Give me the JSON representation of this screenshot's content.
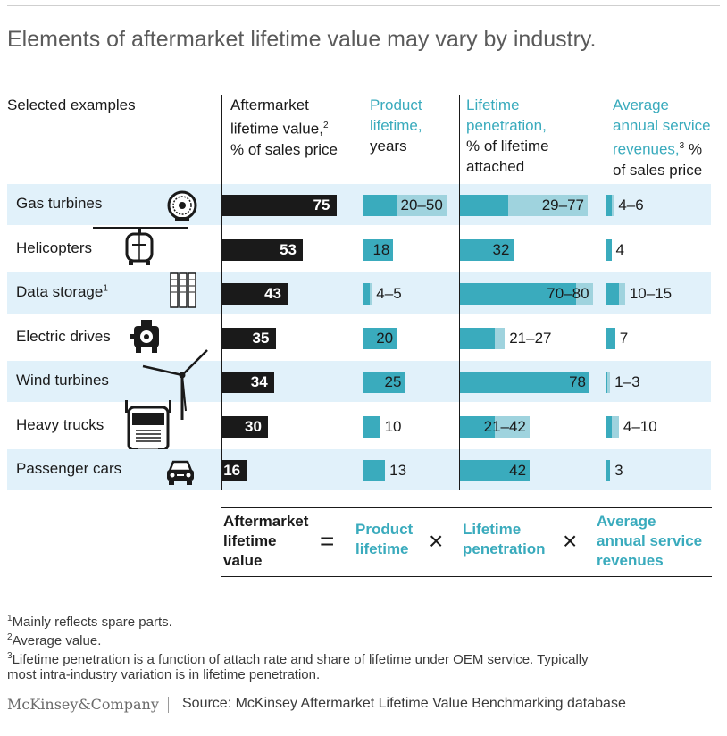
{
  "title": "Elements of aftermarket lifetime value may vary by industry.",
  "headers": {
    "examples": "Selected examples",
    "altv": "Aftermarket\nlifetime value,",
    "altv_sup": "2",
    "altv_unit": "% of sales price",
    "life_teal": "Product\nlifetime,",
    "life_unit": "years",
    "pen_teal": "Lifetime\npenetration,",
    "pen_unit": "% of lifetime\nattached",
    "svc_teal": "Average\nannual service\nrevenues,",
    "svc_sup": "3",
    "svc_pct": " %",
    "svc_unit": "of sales price"
  },
  "colors": {
    "dark": "#1a1a1a",
    "teal": "#3aabbd",
    "light_teal": "#9fd3de",
    "row_band": "#e1f1fa"
  },
  "chart_data": {
    "type": "bar",
    "categories": [
      "Gas turbines",
      "Helicopters",
      "Data storage",
      "Electric drives",
      "Wind turbines",
      "Heavy trucks",
      "Passenger cars"
    ],
    "category_superscripts": [
      "",
      "",
      "1",
      "",
      "",
      "",
      ""
    ],
    "icons": [
      "gas-turbine-icon",
      "helicopter-icon",
      "data-storage-icon",
      "electric-drive-icon",
      "wind-turbine-icon",
      "heavy-truck-icon",
      "passenger-car-icon"
    ],
    "series": [
      {
        "name": "Aftermarket lifetime value",
        "unit": "% of sales price",
        "values": [
          75,
          53,
          43,
          35,
          34,
          30,
          16
        ],
        "labels": [
          "75",
          "53",
          "43",
          "35",
          "34",
          "30",
          "16"
        ]
      },
      {
        "name": "Product lifetime",
        "unit": "years",
        "low": [
          20,
          18,
          4,
          20,
          25,
          10,
          13
        ],
        "high": [
          50,
          18,
          5,
          20,
          25,
          10,
          13
        ],
        "labels": [
          "20–50",
          "18",
          "4–5",
          "20",
          "25",
          "10",
          "13"
        ]
      },
      {
        "name": "Lifetime penetration",
        "unit": "% of lifetime attached",
        "low": [
          29,
          32,
          70,
          21,
          78,
          21,
          42
        ],
        "high": [
          77,
          32,
          80,
          27,
          78,
          42,
          42
        ],
        "labels": [
          "29–77",
          "32",
          "70–80",
          "21–27",
          "78",
          "21–42",
          "42"
        ]
      },
      {
        "name": "Average annual service revenues",
        "unit": "% of sales price",
        "low": [
          4,
          4,
          10,
          7,
          1,
          4,
          3
        ],
        "high": [
          6,
          4,
          15,
          7,
          3,
          10,
          3
        ],
        "labels": [
          "4–6",
          "4",
          "10–15",
          "7",
          "1–3",
          "4–10",
          "3"
        ]
      }
    ]
  },
  "formula": {
    "altv": "Aftermarket\nlifetime\nvalue",
    "equals": "=",
    "life": "Product\nlifetime",
    "times1": "×",
    "pen": "Lifetime\npenetration",
    "times2": "×",
    "svc": "Average\nannual service\nrevenues"
  },
  "footnotes": [
    {
      "sup": "1",
      "text": "Mainly reflects spare parts."
    },
    {
      "sup": "2",
      "text": "Average value."
    },
    {
      "sup": "3",
      "text": "Lifetime penetration is a function of attach rate and share of lifetime under OEM service. Typically"
    },
    {
      "sup": "",
      "text": "most intra-industry variation is in lifetime penetration."
    }
  ],
  "logo": "McKinsey&Company",
  "source": "Source: McKinsey Aftermarket Lifetime Value Benchmarking database"
}
